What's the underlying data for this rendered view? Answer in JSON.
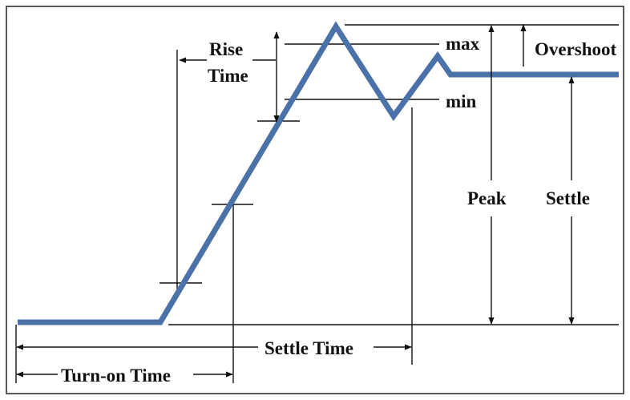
{
  "labels": {
    "max": "max",
    "min": "min",
    "overshoot": "Overshoot",
    "rise_time_line1": "Rise",
    "rise_time_line2": "Time",
    "peak": "Peak",
    "settle": "Settle",
    "settle_time": "Settle Time",
    "turn_on_time": "Turn-on Time"
  },
  "colors": {
    "signal": "#4a72a8",
    "lines": "#111111",
    "background": "#ffffff"
  }
}
